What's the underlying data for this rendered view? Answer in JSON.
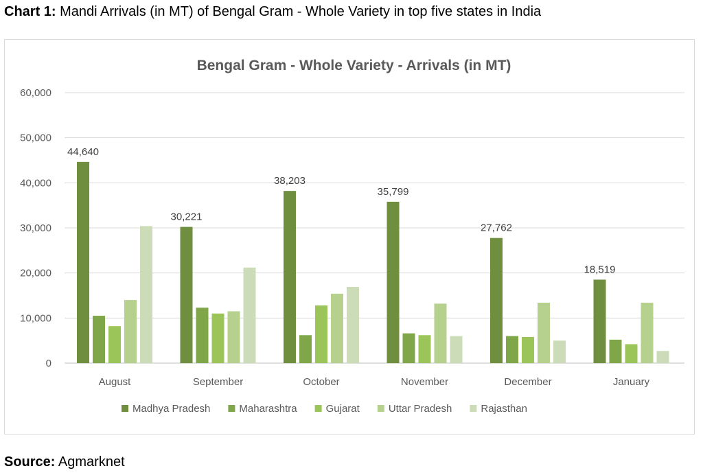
{
  "caption": {
    "prefix": "Chart 1:",
    "text": " Mandi Arrivals (in MT) of Bengal Gram - Whole Variety in top five states in India"
  },
  "source": {
    "prefix": "Source:",
    "text": " Agmarknet"
  },
  "chart_data": {
    "type": "bar",
    "title": "Bengal Gram - Whole Variety - Arrivals (in MT)",
    "xlabel": "",
    "ylabel": "",
    "ylim": [
      0,
      60000
    ],
    "yticks": [
      0,
      10000,
      20000,
      30000,
      40000,
      50000,
      60000
    ],
    "ytick_labels": [
      "0",
      "10,000",
      "20,000",
      "30,000",
      "40,000",
      "50,000",
      "60,000"
    ],
    "grid": true,
    "legend_position": "bottom",
    "categories": [
      "August",
      "September",
      "October",
      "November",
      "December",
      "January"
    ],
    "series": [
      {
        "name": "Madhya Pradesh",
        "color": "#6f8f3f",
        "values": [
          44640,
          30221,
          38203,
          35799,
          27762,
          18519
        ]
      },
      {
        "name": "Maharashtra",
        "color": "#7fa74a",
        "values": [
          10500,
          12300,
          6200,
          6600,
          6000,
          5200
        ]
      },
      {
        "name": "Gujarat",
        "color": "#9bc459",
        "values": [
          8200,
          11000,
          12800,
          6200,
          5800,
          4200
        ]
      },
      {
        "name": "Uttar Pradesh",
        "color": "#b6d08e",
        "values": [
          14000,
          11500,
          15400,
          13200,
          13400,
          13400
        ]
      },
      {
        "name": "Rajasthan",
        "color": "#cddcb8",
        "values": [
          30400,
          21200,
          16900,
          6000,
          5000,
          2700
        ]
      }
    ],
    "data_labels": {
      "series": "Madhya Pradesh",
      "labels": [
        "44,640",
        "30,221",
        "38,203",
        "35,799",
        "27,762",
        "18,519"
      ]
    }
  }
}
